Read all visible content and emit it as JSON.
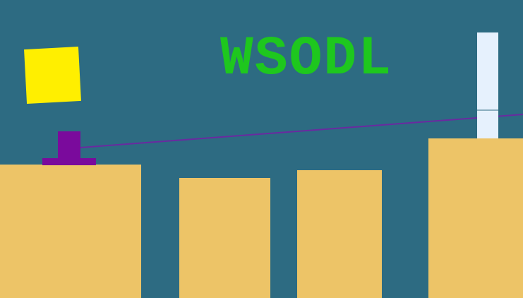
{
  "game": {
    "title": "WSODL"
  },
  "colors": {
    "background": "#2d6b82",
    "platform": "#edc467",
    "title_text": "#1ec71e",
    "yellow_block": "#ffef00",
    "cannon": "#7a0a9c",
    "aim_line": "#6a2aa0",
    "pillar": "#e6f1fd"
  }
}
